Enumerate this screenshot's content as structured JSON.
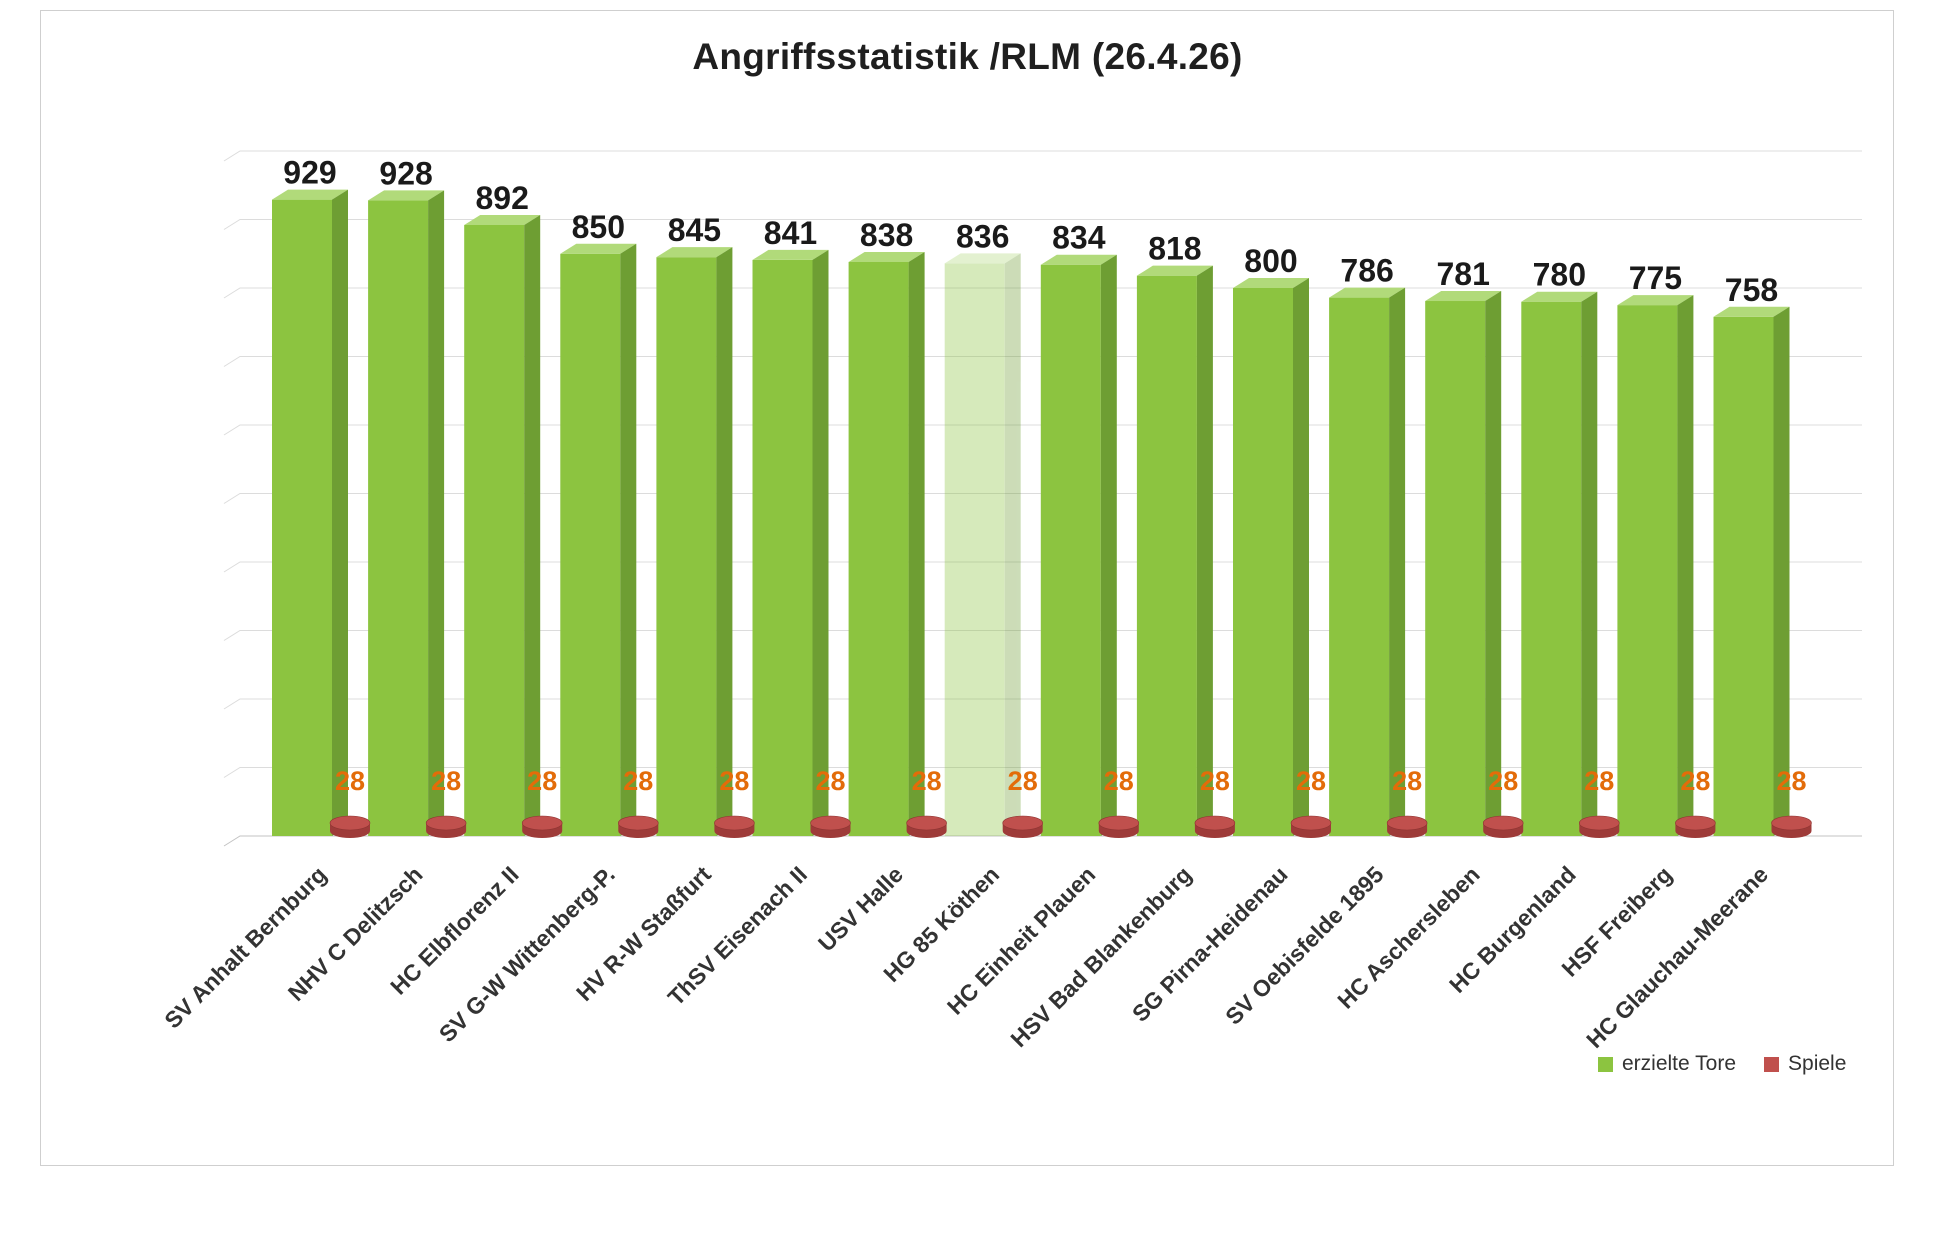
{
  "chart_data": {
    "type": "bar",
    "style": "3d-column",
    "title": "Angriffsstatistik /RLM (26.4.26)",
    "categories": [
      "SV Anhalt Bernburg",
      "NHV C Delitzsch",
      "HC Elbflorenz II",
      "SV G-W Wittenberg-P.",
      "HV R-W Staßfurt",
      "ThSV Eisenach II",
      "USV Halle",
      "HG 85 Köthen",
      "HC Einheit Plauen",
      "HSV Bad Blankenburg",
      "SG Pirna-Heidenau",
      "SV Oebisfelde 1895",
      "HC Aschersleben",
      "HC Burgenland",
      "HSF Freiberg",
      "HC Glauchau-Meerane"
    ],
    "series": [
      {
        "name": "erzielte Tore",
        "color": "#8CC440",
        "color_top": "#B1DA7A",
        "color_side": "#6E9E33",
        "values": [
          929,
          928,
          892,
          850,
          845,
          841,
          838,
          836,
          834,
          818,
          800,
          786,
          781,
          780,
          775,
          758
        ]
      },
      {
        "name": "Spiele",
        "color": "#C0504D",
        "color_top": "#C0504D",
        "color_side": "#9E3B39",
        "values": [
          28,
          28,
          28,
          28,
          28,
          28,
          28,
          28,
          28,
          28,
          28,
          28,
          28,
          28,
          28,
          28
        ]
      }
    ],
    "highlight_index": 7,
    "ylim": [
      0,
      1000
    ],
    "grid_step": 100,
    "grid": true,
    "legend_position": "bottom-right",
    "value_label_color": "#1a1a1a",
    "spiele_label_color": "#E36C09",
    "category_label_color": "#333333",
    "gridline_color": "#dcdcdc"
  }
}
